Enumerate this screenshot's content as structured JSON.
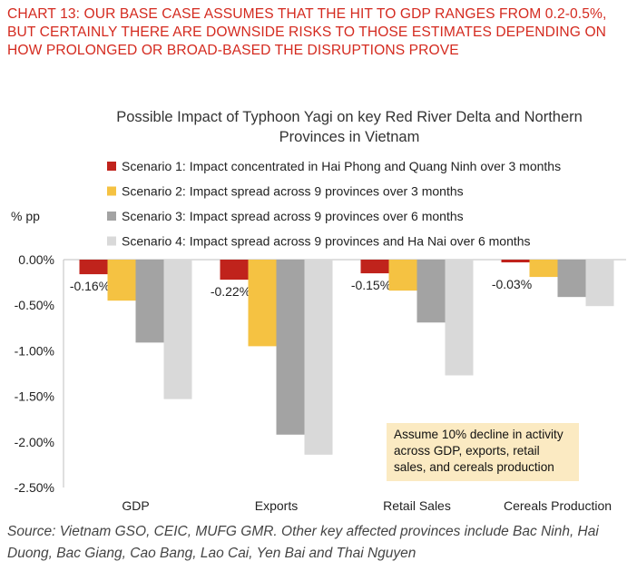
{
  "header": {
    "title": "CHART 13: OUR BASE CASE ASSUMES THAT THE HIT TO GDP RANGES FROM 0.2-0.5%, BUT CERTAINLY THERE ARE DOWNSIDE RISKS TO THOSE ESTIMATES DEPENDING ON HOW PROLONGED OR BROAD-BASED THE DISRUPTIONS PROVE"
  },
  "chart_data": {
    "type": "bar",
    "title": "Possible Impact of Typhoon Yagi on key Red River Delta and Northern Provinces in Vietnam",
    "ylabel": "% pp",
    "categories": [
      "GDP",
      "Exports",
      "Retail Sales",
      "Cereals Production"
    ],
    "ylim": [
      -2.5,
      0
    ],
    "yticks": [
      0,
      -0.5,
      -1.0,
      -1.5,
      -2.0,
      -2.5
    ],
    "ytick_labels": [
      "0.00%",
      "-0.50%",
      "-1.00%",
      "-1.50%",
      "-2.00%",
      "-2.50%"
    ],
    "grid": false,
    "legend_position": "top",
    "series": [
      {
        "name": "Scenario 1: Impact concentrated in Hai Phong and Quang Ninh over 3 months",
        "color": "#c0231c",
        "values": [
          -0.16,
          -0.22,
          -0.15,
          -0.03
        ],
        "data_labels": [
          "-0.16%",
          "-0.22%",
          "-0.15%",
          "-0.03%"
        ]
      },
      {
        "name": "Scenario 2: Impact spread across 9 provinces over 3 months",
        "color": "#f5c242",
        "values": [
          -0.45,
          -0.95,
          -0.34,
          -0.19
        ]
      },
      {
        "name": "Scenario 3: Impact spread across 9 provinces over 6 months",
        "color": "#a3a3a3",
        "values": [
          -0.91,
          -1.92,
          -0.69,
          -0.41
        ]
      },
      {
        "name": "Scenario 4: Impact spread across 9 provinces and Ha Nai over 6 months",
        "color": "#d9d9d9",
        "values": [
          -1.53,
          -2.14,
          -1.27,
          -0.51
        ]
      }
    ]
  },
  "note": {
    "text": "Assume 10% decline in activity across GDP, exports, retail sales, and cereals production"
  },
  "source": {
    "text": "Source: Vietnam GSO, CEIC, MUFG GMR.  Other key affected provinces include Bac Ninh, Hai Duong, Bac Giang, Cao Bang, Lao Cai, Yen Bai and Thai Nguyen"
  }
}
